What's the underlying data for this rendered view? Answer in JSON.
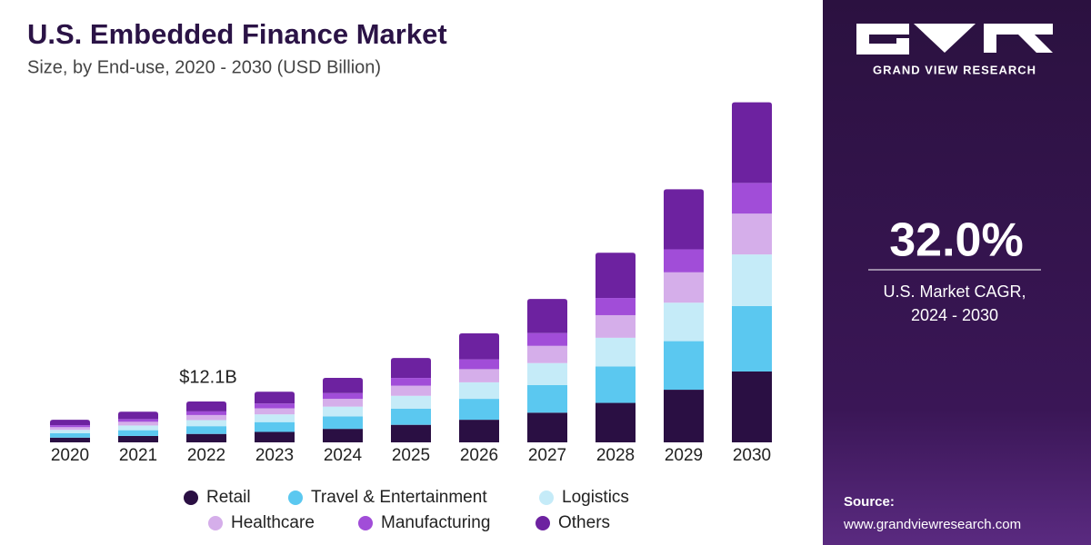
{
  "chart_data": {
    "type": "stacked_bar",
    "title": "U.S. Embedded Finance Market",
    "subtitle": "Size, by End-use, 2020 - 2030 (USD Billion)",
    "categories": [
      "2020",
      "2021",
      "2022",
      "2023",
      "2024",
      "2025",
      "2026",
      "2027",
      "2028",
      "2029",
      "2030"
    ],
    "series": [
      {
        "name": "Retail",
        "color": "#2a0f43",
        "values": [
          1.4,
          1.9,
          2.5,
          3.1,
          4.0,
          5.2,
          6.7,
          8.8,
          11.7,
          15.6,
          21.0
        ]
      },
      {
        "name": "Travel & Entertainment",
        "color": "#5bc8f0",
        "values": [
          1.3,
          1.7,
          2.3,
          2.9,
          3.7,
          4.8,
          6.2,
          8.2,
          10.8,
          14.4,
          19.4
        ]
      },
      {
        "name": "Logistics",
        "color": "#c5ebf8",
        "values": [
          1.0,
          1.4,
          1.8,
          2.3,
          2.9,
          3.8,
          4.9,
          6.5,
          8.5,
          11.4,
          15.3
        ]
      },
      {
        "name": "Healthcare",
        "color": "#d5aeea",
        "values": [
          0.8,
          1.1,
          1.5,
          1.8,
          2.3,
          3.0,
          3.9,
          5.1,
          6.7,
          9.0,
          12.1
        ]
      },
      {
        "name": "Manufacturing",
        "color": "#a14dd8",
        "values": [
          0.6,
          0.8,
          1.1,
          1.4,
          1.7,
          2.3,
          2.9,
          3.8,
          5.1,
          6.8,
          9.1
        ]
      },
      {
        "name": "Others",
        "color": "#6d22a0",
        "values": [
          1.6,
          2.2,
          2.9,
          3.5,
          4.5,
          5.9,
          7.7,
          10.1,
          13.4,
          17.8,
          23.9
        ]
      }
    ],
    "ylim": [
      0,
      105
    ],
    "annotation": {
      "text": "$12.1B",
      "value": 12.1,
      "x": "2022"
    }
  },
  "sidebar": {
    "brand": "GRAND VIEW RESEARCH",
    "cagr": "32.0%",
    "cagr_label": [
      "U.S. Market CAGR,",
      "2024 - 2030"
    ],
    "source_label": "Source:",
    "source_url": "www.grandviewresearch.com"
  }
}
